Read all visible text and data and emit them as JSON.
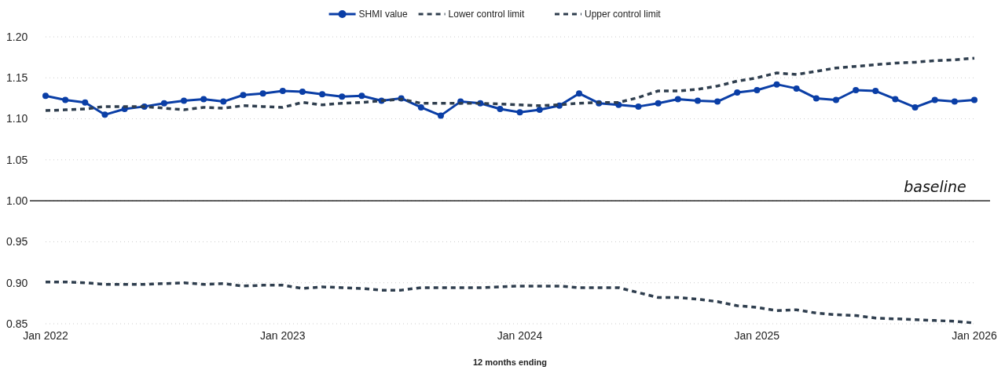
{
  "chart_data": {
    "type": "line",
    "xlabel": "12 months ending",
    "categories": [
      "Jan 2022",
      null,
      null,
      null,
      null,
      null,
      null,
      null,
      null,
      null,
      null,
      null,
      "Jan 2023",
      null,
      null,
      null,
      null,
      null,
      null,
      null,
      null,
      null,
      null,
      null,
      "Jan 2024",
      null,
      null,
      null,
      null,
      null,
      null,
      null,
      null,
      null,
      null,
      null,
      "Jan 2025",
      null,
      null,
      null,
      null,
      null,
      null,
      null,
      null,
      null,
      null,
      "Jan 2026"
    ],
    "series": [
      {
        "name": "SHMI value",
        "color": "#0a3ea6",
        "marker": "circle",
        "line_style": "solid",
        "values": [
          1.128,
          1.123,
          1.12,
          1.105,
          1.112,
          1.115,
          1.119,
          1.122,
          1.124,
          1.121,
          1.129,
          1.131,
          1.134,
          1.133,
          1.13,
          1.127,
          1.128,
          1.122,
          1.125,
          1.114,
          1.104,
          1.121,
          1.119,
          1.112,
          1.108,
          1.111,
          1.116,
          1.131,
          1.119,
          1.117,
          1.115,
          1.119,
          1.124,
          1.122,
          1.121,
          1.132,
          1.135,
          1.142,
          1.137,
          1.125,
          1.123,
          1.135,
          1.134,
          1.124,
          1.114,
          1.123,
          1.121,
          1.123
        ]
      },
      {
        "name": "Lower control limit",
        "color": "#2f3e4e",
        "marker": "none",
        "line_style": "dashed",
        "values": [
          0.901,
          0.901,
          0.9,
          0.898,
          0.898,
          0.898,
          0.899,
          0.9,
          0.898,
          0.899,
          0.896,
          0.897,
          0.897,
          0.893,
          0.895,
          0.894,
          0.893,
          0.891,
          0.891,
          0.894,
          0.894,
          0.894,
          0.894,
          0.895,
          0.896,
          0.896,
          0.896,
          0.894,
          0.894,
          0.894,
          0.888,
          0.882,
          0.882,
          0.88,
          0.877,
          0.872,
          0.87,
          0.866,
          0.867,
          0.863,
          0.861,
          0.86,
          0.857,
          0.856,
          0.855,
          0.854,
          0.853,
          0.851
        ]
      },
      {
        "name": "Upper control limit",
        "color": "#2f3e4e",
        "marker": "none",
        "line_style": "dashed",
        "values": [
          1.11,
          1.111,
          1.112,
          1.115,
          1.115,
          1.115,
          1.113,
          1.111,
          1.114,
          1.113,
          1.116,
          1.115,
          1.114,
          1.12,
          1.117,
          1.119,
          1.12,
          1.122,
          1.124,
          1.119,
          1.119,
          1.119,
          1.119,
          1.118,
          1.117,
          1.116,
          1.117,
          1.119,
          1.12,
          1.12,
          1.126,
          1.134,
          1.134,
          1.136,
          1.14,
          1.146,
          1.15,
          1.156,
          1.154,
          1.158,
          1.162,
          1.164,
          1.166,
          1.168,
          1.169,
          1.171,
          1.172,
          1.174
        ]
      }
    ],
    "ylim": [
      0.85,
      1.2
    ],
    "yticks": [
      {
        "value": 0.85,
        "label": "0.85"
      },
      {
        "value": 0.9,
        "label": "0.90"
      },
      {
        "value": 0.95,
        "label": "0.95"
      },
      {
        "value": 1.0,
        "label": "1.00"
      },
      {
        "value": 1.05,
        "label": "1.05"
      },
      {
        "value": 1.1,
        "label": "1.10"
      },
      {
        "value": 1.15,
        "label": "1.15"
      },
      {
        "value": 1.2,
        "label": "1.20"
      }
    ],
    "grid": "y",
    "legend": "top",
    "ref_lines": [
      {
        "axis": "y",
        "value": 1.0,
        "label": "baseline",
        "color": "#000000",
        "line_style": "solid"
      }
    ]
  }
}
